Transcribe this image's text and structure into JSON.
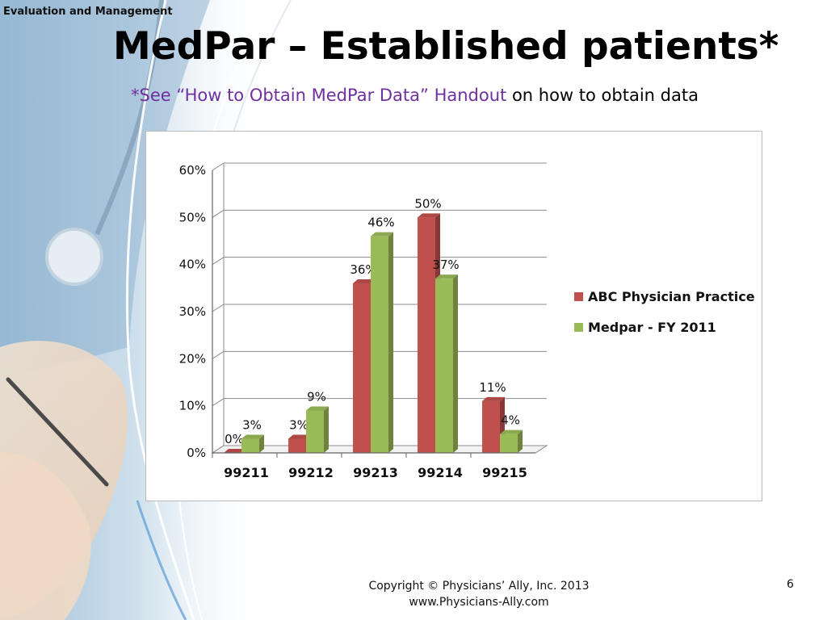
{
  "slide": {
    "section_label": "Evaluation and Management",
    "title": "MedPar – Established patients*",
    "subtitle_link": "*See “How to Obtain MedPar Data” Handout",
    "subtitle_rest": " on how to obtain data",
    "footer_line1": "Copyright © Physicians’ Ally, Inc. 2013",
    "footer_line2": "www.Physicians-Ally.com",
    "page_number": "6"
  },
  "chart_data": {
    "type": "bar",
    "categories": [
      "99211",
      "99212",
      "99213",
      "99214",
      "99215"
    ],
    "series": [
      {
        "name": "ABC Physician Practice",
        "values": [
          0,
          3,
          36,
          50,
          11
        ],
        "labels": [
          "0%",
          "3%",
          "36%",
          "50%",
          "11%"
        ],
        "color": "#c0504d"
      },
      {
        "name": "Medpar - FY 2011",
        "values": [
          3,
          9,
          46,
          37,
          4
        ],
        "labels": [
          "3%",
          "9%",
          "46%",
          "37%",
          "4%"
        ],
        "color": "#9bbb59"
      }
    ],
    "yticks": [
      "0%",
      "10%",
      "20%",
      "30%",
      "40%",
      "50%",
      "60%"
    ],
    "ylim": [
      0,
      60
    ],
    "grid": true,
    "legend": "right"
  }
}
